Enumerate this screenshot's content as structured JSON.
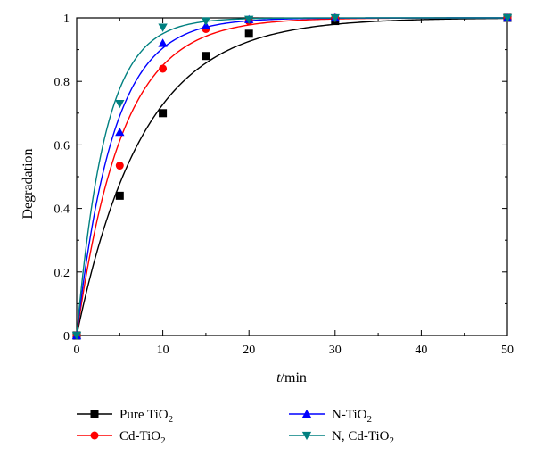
{
  "chart_data": {
    "type": "scatter",
    "xlabel_italic": "t",
    "xlabel_rest": "/min",
    "ylabel": "Degradation",
    "xlim": [
      0,
      50
    ],
    "ylim": [
      0,
      1
    ],
    "xticks": [
      "0",
      "10",
      "20",
      "30",
      "40",
      "50"
    ],
    "yticks": [
      "0",
      "0.2",
      "0.4",
      "0.6",
      "0.8",
      "1"
    ],
    "grid": false,
    "legend_position": "bottom",
    "series": [
      {
        "key": "pure",
        "name_main": "Pure TiO",
        "name_sub": "2",
        "marker": "square",
        "color": "#000000",
        "x": [
          0,
          5,
          10,
          15,
          20,
          30,
          50
        ],
        "y": [
          0,
          0.44,
          0.7,
          0.88,
          0.95,
          0.99,
          1.0
        ],
        "fit_rate": 0.13
      },
      {
        "key": "cd",
        "name_main": "Cd-TiO",
        "name_sub": "2",
        "marker": "circle",
        "color": "#ff0000",
        "x": [
          0,
          5,
          10,
          15,
          20,
          30,
          50
        ],
        "y": [
          0,
          0.535,
          0.84,
          0.965,
          0.99,
          1.0,
          1.0
        ],
        "fit_rate": 0.19
      },
      {
        "key": "n",
        "name_main": "N-TiO",
        "name_sub": "2",
        "marker": "triangle-up",
        "color": "#0000ff",
        "x": [
          0,
          5,
          10,
          15,
          20,
          30,
          50
        ],
        "y": [
          0,
          0.64,
          0.92,
          0.975,
          0.995,
          1.0,
          1.0
        ],
        "fit_rate": 0.235
      },
      {
        "key": "ncd",
        "name_main": "N, Cd-TiO",
        "name_sub": "2",
        "marker": "triangle-down",
        "color": "#008080",
        "x": [
          0,
          5,
          10,
          15,
          20,
          30,
          50
        ],
        "y": [
          0,
          0.73,
          0.97,
          0.99,
          0.995,
          1.0,
          1.0
        ],
        "fit_rate": 0.3
      }
    ]
  }
}
